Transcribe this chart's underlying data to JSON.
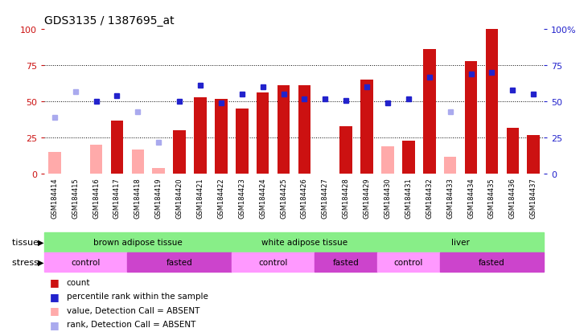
{
  "title": "GDS3135 / 1387695_at",
  "samples": [
    "GSM184414",
    "GSM184415",
    "GSM184416",
    "GSM184417",
    "GSM184418",
    "GSM184419",
    "GSM184420",
    "GSM184421",
    "GSM184422",
    "GSM184423",
    "GSM184424",
    "GSM184425",
    "GSM184426",
    "GSM184427",
    "GSM184428",
    "GSM184429",
    "GSM184430",
    "GSM184431",
    "GSM184432",
    "GSM184433",
    "GSM184434",
    "GSM184435",
    "GSM184436",
    "GSM184437"
  ],
  "count_values": [
    15,
    0,
    20,
    37,
    17,
    4,
    30,
    53,
    52,
    45,
    56,
    61,
    61,
    0,
    33,
    65,
    19,
    23,
    86,
    12,
    78,
    100,
    32,
    27
  ],
  "rank_values": [
    39,
    57,
    50,
    54,
    43,
    22,
    50,
    61,
    49,
    55,
    60,
    55,
    52,
    52,
    51,
    60,
    49,
    52,
    67,
    43,
    69,
    70,
    58,
    55
  ],
  "absent_count": [
    true,
    true,
    true,
    false,
    true,
    true,
    false,
    false,
    false,
    false,
    false,
    false,
    false,
    true,
    false,
    false,
    true,
    false,
    false,
    true,
    false,
    false,
    false,
    false
  ],
  "absent_rank": [
    true,
    true,
    false,
    false,
    true,
    true,
    false,
    false,
    false,
    false,
    false,
    false,
    false,
    false,
    false,
    false,
    false,
    false,
    false,
    true,
    false,
    false,
    false,
    false
  ],
  "bar_color_present": "#cc1111",
  "bar_color_absent": "#ffaaaa",
  "rank_color_present": "#2222cc",
  "rank_color_absent": "#aaaaee",
  "tissue_groups": [
    {
      "label": "brown adipose tissue",
      "start": 0,
      "end": 9,
      "color": "#88ee88"
    },
    {
      "label": "white adipose tissue",
      "start": 9,
      "end": 16,
      "color": "#88ee88"
    },
    {
      "label": "liver",
      "start": 16,
      "end": 24,
      "color": "#88ee88"
    }
  ],
  "stress_groups": [
    {
      "label": "control",
      "start": 0,
      "end": 4,
      "color": "#ff99ff"
    },
    {
      "label": "fasted",
      "start": 4,
      "end": 9,
      "color": "#cc44cc"
    },
    {
      "label": "control",
      "start": 9,
      "end": 13,
      "color": "#ff99ff"
    },
    {
      "label": "fasted",
      "start": 13,
      "end": 16,
      "color": "#cc44cc"
    },
    {
      "label": "control",
      "start": 16,
      "end": 19,
      "color": "#ff99ff"
    },
    {
      "label": "fasted",
      "start": 19,
      "end": 24,
      "color": "#cc44cc"
    }
  ],
  "legend_items": [
    {
      "color": "#cc1111",
      "label": "count"
    },
    {
      "color": "#2222cc",
      "label": "percentile rank within the sample"
    },
    {
      "color": "#ffaaaa",
      "label": "value, Detection Call = ABSENT"
    },
    {
      "color": "#aaaaee",
      "label": "rank, Detection Call = ABSENT"
    }
  ]
}
